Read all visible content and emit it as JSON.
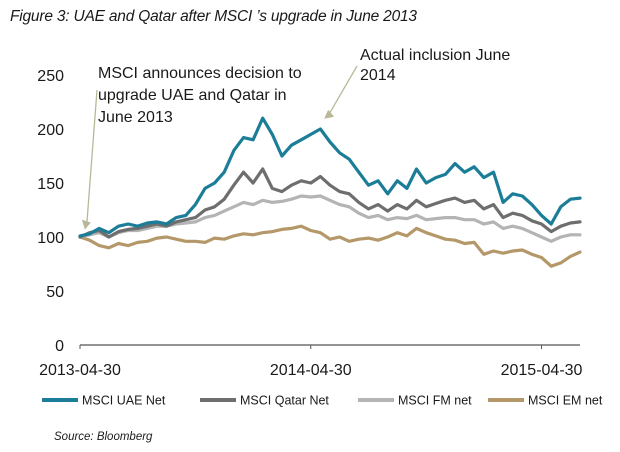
{
  "figure": {
    "title": "Figure 3: UAE and Qatar after MSCI ’s upgrade in June 2013",
    "source": "Source: Bloomberg"
  },
  "chart_data": {
    "type": "line",
    "title": "Figure 3: UAE and Qatar after MSCI ’s upgrade in June 2013",
    "xlabel": "",
    "ylabel": "",
    "ylim": [
      0,
      250
    ],
    "yticks": [
      0,
      50,
      100,
      150,
      200,
      250
    ],
    "xlim": [
      0,
      26
    ],
    "x_unit": "months since 2013-04-30",
    "xticks": [
      {
        "x": 0,
        "label": "2013-04-30"
      },
      {
        "x": 12,
        "label": "2014-04-30"
      },
      {
        "x": 24,
        "label": "2015-04-30"
      }
    ],
    "grid": false,
    "legend_position": "bottom",
    "x": [
      0,
      0.5,
      1,
      1.5,
      2,
      2.5,
      3,
      3.5,
      4,
      4.5,
      5,
      5.5,
      6,
      6.5,
      7,
      7.5,
      8,
      8.5,
      9,
      9.5,
      10,
      10.5,
      11,
      11.5,
      12,
      12.5,
      13,
      13.5,
      14,
      14.5,
      15,
      15.5,
      16,
      16.5,
      17,
      17.5,
      18,
      18.5,
      19,
      19.5,
      20,
      20.5,
      21,
      21.5,
      22,
      22.5,
      23,
      23.5,
      24,
      24.5,
      25,
      25.5,
      26
    ],
    "series": [
      {
        "name": "MSCI UAE Net",
        "color": "#1b7d98",
        "values": [
          101,
          103,
          108,
          104,
          110,
          112,
          110,
          113,
          114,
          112,
          118,
          120,
          130,
          145,
          150,
          160,
          180,
          192,
          190,
          210,
          195,
          175,
          185,
          190,
          195,
          200,
          188,
          178,
          172,
          160,
          148,
          152,
          140,
          152,
          145,
          163,
          150,
          155,
          158,
          168,
          160,
          165,
          155,
          160,
          132,
          140,
          138,
          130,
          120,
          112,
          128,
          135,
          136
        ]
      },
      {
        "name": "MSCI Qatar Net",
        "color": "#6e6e6e",
        "values": [
          100,
          104,
          106,
          100,
          105,
          107,
          108,
          110,
          112,
          110,
          114,
          116,
          118,
          125,
          128,
          135,
          148,
          160,
          150,
          163,
          145,
          142,
          148,
          152,
          150,
          156,
          148,
          142,
          140,
          132,
          126,
          130,
          124,
          130,
          126,
          134,
          128,
          131,
          134,
          136,
          132,
          134,
          126,
          130,
          118,
          122,
          120,
          115,
          112,
          105,
          110,
          113,
          114
        ]
      },
      {
        "name": "MSCI FM net",
        "color": "#b4b4b4",
        "values": [
          100,
          102,
          104,
          100,
          104,
          106,
          106,
          108,
          110,
          110,
          112,
          113,
          114,
          118,
          120,
          124,
          128,
          132,
          130,
          134,
          132,
          133,
          135,
          138,
          137,
          138,
          134,
          130,
          128,
          122,
          118,
          120,
          116,
          118,
          117,
          120,
          116,
          117,
          118,
          118,
          116,
          116,
          112,
          114,
          108,
          110,
          108,
          104,
          100,
          96,
          100,
          102,
          102
        ]
      },
      {
        "name": "MSCI EM net",
        "color": "#b5986a",
        "values": [
          100,
          97,
          92,
          90,
          94,
          92,
          95,
          96,
          99,
          100,
          98,
          96,
          96,
          95,
          99,
          98,
          101,
          103,
          102,
          104,
          105,
          107,
          108,
          110,
          106,
          104,
          98,
          100,
          96,
          98,
          99,
          97,
          100,
          104,
          101,
          108,
          104,
          101,
          98,
          97,
          94,
          95,
          84,
          87,
          85,
          87,
          88,
          84,
          81,
          73,
          76,
          82,
          86
        ]
      }
    ],
    "annotations": [
      {
        "id": "decision",
        "text": [
          "MSCI announces decision to",
          "upgrade UAE and Qatar in",
          "June 2013"
        ],
        "x": 0.2,
        "y": 105
      },
      {
        "id": "inclusion",
        "text": [
          "Actual inclusion June",
          "2014"
        ],
        "x": 12.8,
        "y": 215
      }
    ]
  }
}
